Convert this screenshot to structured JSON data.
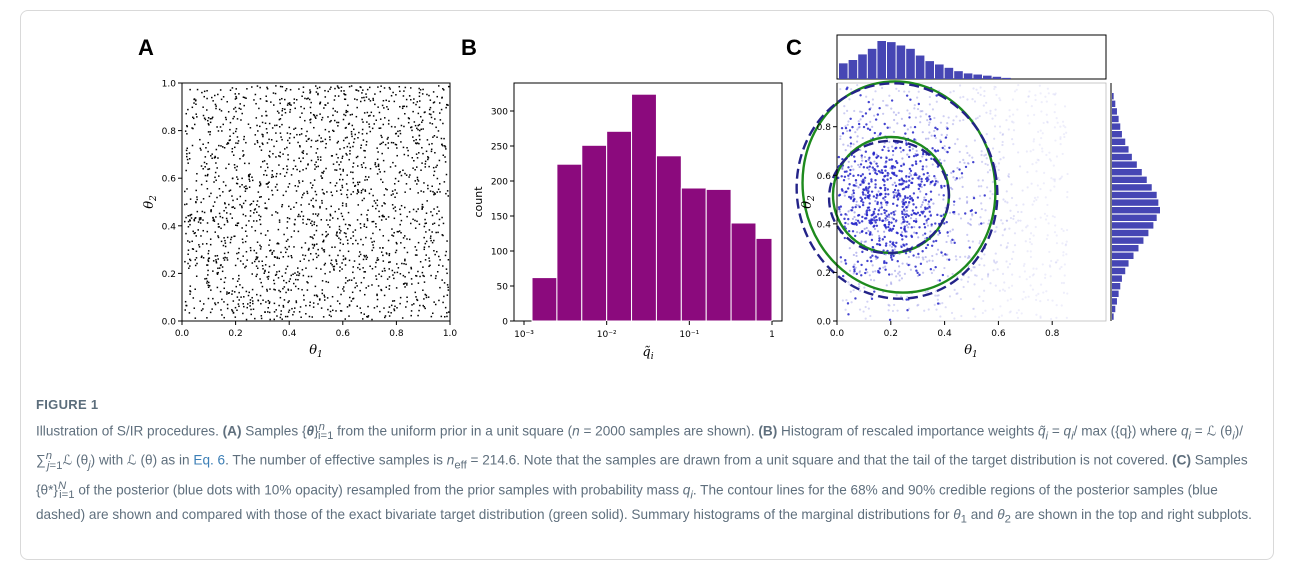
{
  "panels": {
    "a": {
      "letter": "A",
      "xlabel": "θ1",
      "ylabel": "θ2",
      "x_ticks": [
        "0.0",
        "0.2",
        "0.4",
        "0.6",
        "0.8",
        "1.0"
      ],
      "y_ticks": [
        "0.0",
        "0.2",
        "0.4",
        "0.6",
        "0.8",
        "1.0"
      ]
    },
    "b": {
      "letter": "B",
      "xlabel": "q̃i",
      "ylabel": "count",
      "x_ticks": [
        "10⁻³",
        "10⁻²",
        "10⁻¹",
        "1"
      ],
      "y_ticks": [
        "0",
        "50",
        "100",
        "150",
        "200",
        "250",
        "300"
      ]
    },
    "c": {
      "letter": "C",
      "xlabel": "θ1",
      "ylabel": "θ2",
      "x_ticks": [
        "0.0",
        "0.2",
        "0.4",
        "0.6",
        "0.8"
      ],
      "y_ticks": [
        "0.0",
        "0.2",
        "0.4",
        "0.6",
        "0.8"
      ]
    }
  },
  "chart_data": [
    {
      "panel": "A",
      "type": "scatter",
      "description_n": 2000,
      "xlim": [
        0,
        1
      ],
      "ylim": [
        0,
        1
      ],
      "xlabel": "θ1",
      "ylabel": "θ2"
    },
    {
      "panel": "B",
      "type": "bar",
      "log_x": true,
      "xlim": [
        0.001,
        1
      ],
      "ylim": [
        0,
        340
      ],
      "bin_edges": [
        0.00125,
        0.0025,
        0.005,
        0.01,
        0.02,
        0.04,
        0.08,
        0.16,
        0.32,
        0.64,
        1.0
      ],
      "values": [
        62,
        224,
        251,
        271,
        324,
        236,
        190,
        188,
        140,
        118
      ],
      "xlabel": "q̃i",
      "ylabel": "count",
      "color": "#8b0a7d"
    },
    {
      "panel": "C",
      "type": "scatter",
      "xlim": [
        0,
        1
      ],
      "ylim": [
        0,
        1
      ],
      "xlabel": "θ1",
      "ylabel": "θ2",
      "point_color": "#2323c8",
      "contour_colors": {
        "posterior": "#232388",
        "exact": "#1d8a1d"
      },
      "top_hist": [
        14,
        17,
        22,
        27,
        34,
        33,
        30,
        27,
        21,
        16,
        13,
        10,
        7,
        5,
        4,
        3,
        2,
        1
      ],
      "right_hist": [
        1,
        2,
        3,
        4,
        5,
        6,
        8,
        10,
        12,
        15,
        18,
        21,
        24,
        27,
        28,
        29,
        27,
        25,
        22,
        19,
        16,
        13,
        10,
        8,
        6,
        5,
        4,
        3,
        2,
        1
      ]
    }
  ],
  "caption": {
    "figure_label": "FIGURE 1",
    "line1_plain": "Illustration of S/IR procedures. ",
    "a_tag": "(A)",
    "a_text1": " Samples {",
    "a_theta": "θ",
    "a_text2": "}",
    "a_sup": "n",
    "a_sub": "i=1",
    "a_text3": " from the uniform prior in a unit square (",
    "a_n": "n",
    "a_text4": " = 2000 samples are shown). ",
    "b_tag": "(B)",
    "b_text1": " Histogram of rescaled importance weights ",
    "b_formula1": "q̃",
    "b_text2": " = ",
    "b_q": "q",
    "b_text3": "/ max ({q}) where ",
    "b_text4": " = ℒ (θ",
    "b_text5": ")/∑",
    "b_text6": "ℒ (θ",
    "b_text7": ") with ℒ (θ) as in ",
    "b_eq_link": "Eq. 6",
    "b_text8": ". The number of effective samples is ",
    "b_neff": "n",
    "b_neff_sub": "eff",
    "b_text9": " = 214.6. Note that the samples are drawn from a unit square and that the tail of the target distribution is not covered. ",
    "c_tag": "(C)",
    "c_text1": " Samples {θ*}",
    "c_sup": "N",
    "c_sub": "i=1",
    "c_text2": " of the posterior (blue dots with 10% opacity) resampled from the prior samples with probability mass ",
    "c_text3": ". The contour lines for the 68% and 90% credible regions of the posterior samples (blue dashed) are shown and compared with those of the exact bivariate target distribution (green solid). Summary histograms of the marginal distributions for ",
    "c_theta1": "θ",
    "c_text4": " and ",
    "c_text5": " are shown in the top and right subplots."
  }
}
